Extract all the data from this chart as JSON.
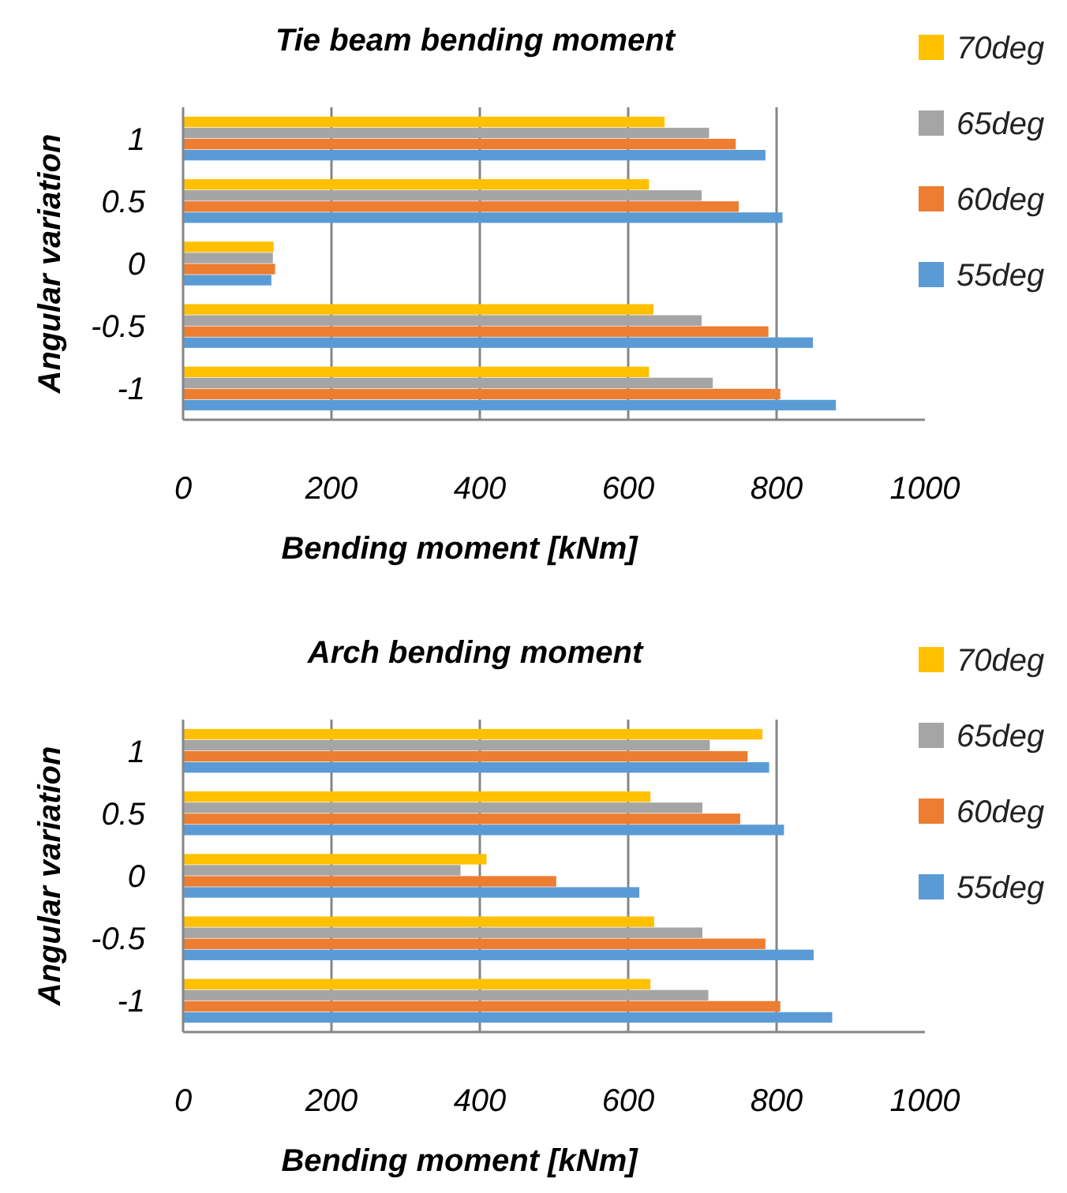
{
  "chart_data": [
    {
      "type": "bar",
      "orientation": "horizontal",
      "title": "Tie beam bending moment",
      "xlabel": "Bending moment [kNm]",
      "ylabel": "Angular variation",
      "categories": [
        "1",
        "0.5",
        "0",
        "-0.5",
        "-1"
      ],
      "xlim": [
        0,
        1000
      ],
      "xticks": [
        0,
        200,
        400,
        600,
        800,
        1000
      ],
      "grid": "x",
      "legend": "right",
      "series": [
        {
          "name": "55deg",
          "color": "#5b9bd5",
          "values": [
            785,
            808,
            119,
            849,
            880
          ]
        },
        {
          "name": "60deg",
          "color": "#ed7d31",
          "values": [
            745,
            749,
            124,
            789,
            805
          ]
        },
        {
          "name": "65deg",
          "color": "#a5a5a5",
          "values": [
            709,
            699,
            121,
            699,
            714
          ]
        },
        {
          "name": "70deg",
          "color": "#ffc000",
          "values": [
            649,
            628,
            122,
            634,
            628
          ]
        }
      ]
    },
    {
      "type": "bar",
      "orientation": "horizontal",
      "title": "Arch bending moment",
      "xlabel": "Bending moment [kNm]",
      "ylabel": "Angular variation",
      "categories": [
        "1",
        "0.5",
        "0",
        "-0.5",
        "-1"
      ],
      "xlim": [
        0,
        1000
      ],
      "xticks": [
        0,
        200,
        400,
        600,
        800,
        1000
      ],
      "grid": "x",
      "legend": "right",
      "series": [
        {
          "name": "55deg",
          "color": "#5b9bd5",
          "values": [
            790,
            810,
            615,
            850,
            875
          ]
        },
        {
          "name": "60deg",
          "color": "#ed7d31",
          "values": [
            761,
            751,
            503,
            785,
            805
          ]
        },
        {
          "name": "65deg",
          "color": "#a5a5a5",
          "values": [
            710,
            700,
            374,
            700,
            708
          ]
        },
        {
          "name": "70deg",
          "color": "#ffc000",
          "values": [
            781,
            630,
            409,
            635,
            630
          ]
        }
      ]
    }
  ]
}
